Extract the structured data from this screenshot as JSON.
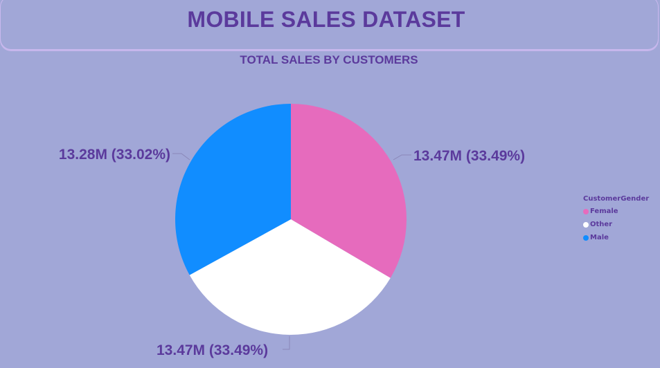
{
  "header": {
    "title": "MOBILE SALES DATASET"
  },
  "chart_data": {
    "type": "pie",
    "title": "TOTAL SALES BY CUSTOMERS",
    "legend_title": "CustomerGender",
    "legend_position": "right",
    "slices": [
      {
        "name": "Female",
        "value": 13.47,
        "unit": "M",
        "percent": 33.49,
        "label": "13.47M (33.49%)",
        "color": "#e66bbd"
      },
      {
        "name": "Other",
        "value": 13.47,
        "unit": "M",
        "percent": 33.49,
        "label": "13.47M (33.49%)",
        "color": "#ffffff"
      },
      {
        "name": "Male",
        "value": 13.28,
        "unit": "M",
        "percent": 33.02,
        "label": "13.28M (33.02%)",
        "color": "#118dff"
      }
    ]
  },
  "colors": {
    "background": "#a1a7d7",
    "title_text": "#5b3a9c"
  }
}
